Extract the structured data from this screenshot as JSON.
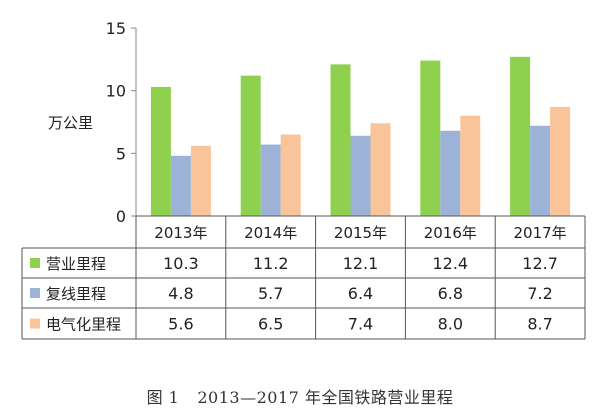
{
  "chart_data": {
    "type": "bar",
    "categories": [
      "2013年",
      "2014年",
      "2015年",
      "2016年",
      "2017年"
    ],
    "series": [
      {
        "name": "营业里程",
        "values": [
          10.3,
          11.2,
          12.1,
          12.4,
          12.7
        ],
        "color": "#8fd14f",
        "value_labels": [
          "10.3",
          "11.2",
          "12.1",
          "12.4",
          "12.7"
        ]
      },
      {
        "name": "复线里程",
        "values": [
          4.8,
          5.7,
          6.4,
          6.8,
          7.2
        ],
        "color": "#9cb2d6",
        "value_labels": [
          "4.8",
          "5.7",
          "6.4",
          "6.8",
          "7.2"
        ]
      },
      {
        "name": "电气化里程",
        "values": [
          5.6,
          6.5,
          7.4,
          8.0,
          8.7
        ],
        "color": "#f9c49a",
        "value_labels": [
          "5.6",
          "6.5",
          "7.4",
          "8.0",
          "8.7"
        ]
      }
    ],
    "ylabel": "万公里",
    "ylim": [
      0,
      15
    ],
    "yticks": [
      0,
      5,
      10,
      15
    ],
    "grid": false,
    "legend": "data-table-below"
  },
  "caption": {
    "number": "图 1",
    "text": "2013—2017 年全国铁路营业里程"
  }
}
